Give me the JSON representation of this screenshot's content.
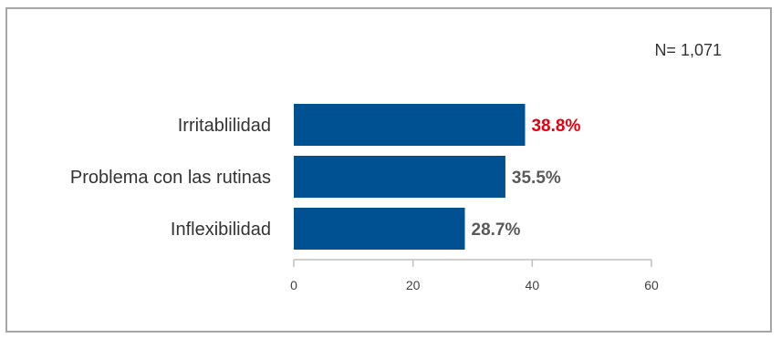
{
  "n_label": "N= 1,071",
  "chart_data": {
    "type": "bar",
    "orientation": "horizontal",
    "categories": [
      "Irritablilidad",
      "Problema con las rutinas",
      "Inflexibilidad"
    ],
    "values": [
      38.8,
      35.5,
      28.7
    ],
    "value_labels": [
      "38.8%",
      "35.5%",
      "28.7%"
    ],
    "xlim": [
      0,
      60
    ],
    "xticks": [
      0,
      20,
      40,
      60
    ],
    "grid": false,
    "colors": {
      "bar": "#005192",
      "highlight_label": "#e3000f",
      "label": "#595959"
    },
    "highlight_index": 0
  }
}
